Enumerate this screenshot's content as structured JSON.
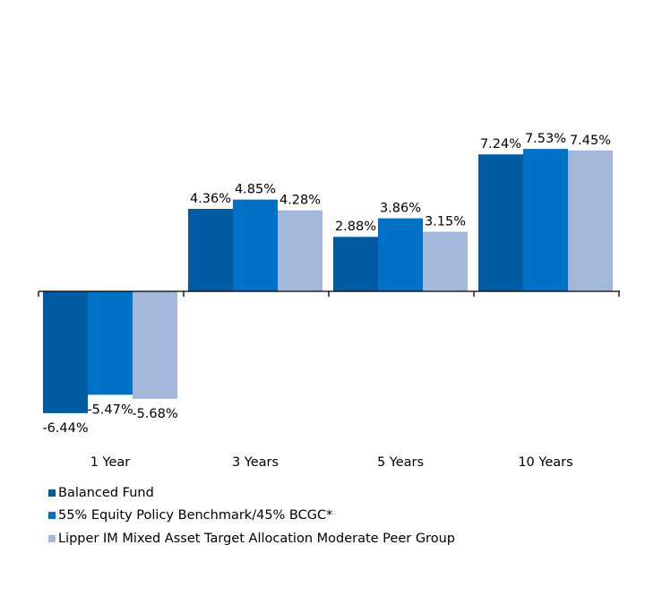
{
  "chart_data": {
    "type": "bar",
    "categories": [
      "1 Year",
      "3 Years",
      "5 Years",
      "10 Years"
    ],
    "series": [
      {
        "name": "Balanced Fund",
        "values": [
          -6.44,
          4.36,
          2.88,
          7.24
        ],
        "labels": [
          "-6.44%",
          "4.36%",
          "2.88%",
          "7.24%"
        ],
        "color": "#005ba1"
      },
      {
        "name": "55% Equity Policy Benchmark/45% BCGC*",
        "values": [
          -5.47,
          4.85,
          3.86,
          7.53
        ],
        "labels": [
          "-5.47%",
          "4.85%",
          "3.86%",
          "7.53%"
        ],
        "color": "#0072c6"
      },
      {
        "name": "Lipper IM Mixed Asset Target Allocation Moderate Peer Group",
        "values": [
          -5.68,
          4.28,
          3.15,
          7.45
        ],
        "labels": [
          "-5.68%",
          "4.28%",
          "3.15%",
          "7.45%"
        ],
        "color": "#a3b7db"
      }
    ],
    "legend_position": "bottom-left",
    "grid": false,
    "ylim": [
      -7,
      10
    ],
    "xlabel": "",
    "ylabel": "",
    "title": ""
  },
  "legend": {
    "items": [
      {
        "label": "Balanced Fund",
        "color": "#005ba1"
      },
      {
        "label": "55% Equity Policy Benchmark/45% BCGC*",
        "color": "#0072c6"
      },
      {
        "label": "Lipper IM Mixed Asset Target Allocation Moderate Peer Group",
        "color": "#a3b7db"
      }
    ]
  }
}
